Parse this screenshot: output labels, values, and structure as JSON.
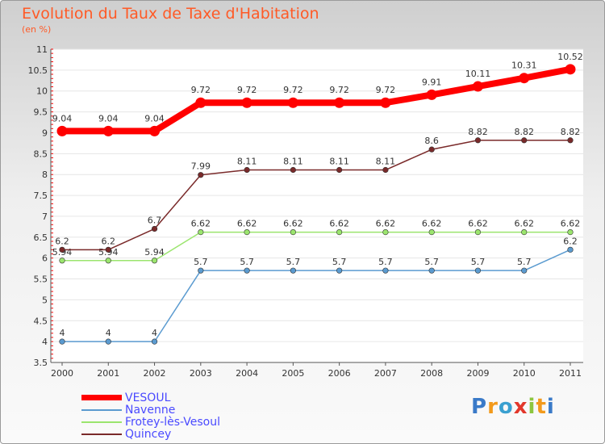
{
  "title": "Evolution du Taux de Taxe d'Habitation",
  "subtitle": "(en %)",
  "logo_text": "Proxiti",
  "chart_data": {
    "type": "line",
    "title": "Evolution du Taux de Taxe d'Habitation",
    "ylabel": "(en %)",
    "ylim": [
      3.5,
      11
    ],
    "yticks": [
      "3.5",
      "4",
      "4.5",
      "5",
      "5.5",
      "6",
      "6.5",
      "7",
      "7.5",
      "8",
      "8.5",
      "9",
      "9.5",
      "10",
      "10.5",
      "11"
    ],
    "categories": [
      "2000",
      "2001",
      "2002",
      "2003",
      "2004",
      "2005",
      "2006",
      "2007",
      "2008",
      "2009",
      "2010",
      "2011"
    ],
    "series": [
      {
        "name": "VESOUL",
        "color": "#ff0000",
        "values": [
          9.04,
          9.04,
          9.04,
          9.72,
          9.72,
          9.72,
          9.72,
          9.72,
          9.91,
          10.11,
          10.31,
          10.52
        ],
        "labels": [
          "9.04",
          "9.04",
          "9.04",
          "9.72",
          "9.72",
          "9.72",
          "9.72",
          "9.72",
          "9.91",
          "10.11",
          "10.31",
          "10.52"
        ]
      },
      {
        "name": "Navenne",
        "color": "#5b9bd0",
        "values": [
          4,
          4,
          4,
          5.7,
          5.7,
          5.7,
          5.7,
          5.7,
          5.7,
          5.7,
          5.7,
          6.2
        ],
        "labels": [
          "4",
          "4",
          "4",
          "5.7",
          "5.7",
          "5.7",
          "5.7",
          "5.7",
          "5.7",
          "5.7",
          "5.7",
          "6.2"
        ]
      },
      {
        "name": "Frotey-lès-Vesoul",
        "color": "#9be56e",
        "values": [
          5.94,
          5.94,
          5.94,
          6.62,
          6.62,
          6.62,
          6.62,
          6.62,
          6.62,
          6.62,
          6.62,
          6.62
        ],
        "labels": [
          "5.94",
          "5.94",
          "5.94",
          "6.62",
          "6.62",
          "6.62",
          "6.62",
          "6.62",
          "6.62",
          "6.62",
          "6.62",
          "6.62"
        ]
      },
      {
        "name": "Quincey",
        "color": "#7a2a2a",
        "values": [
          6.2,
          6.2,
          6.7,
          7.99,
          8.11,
          8.11,
          8.11,
          8.11,
          8.6,
          8.82,
          8.82,
          8.82
        ],
        "labels": [
          "6.2",
          "6.2",
          "6.7",
          "7.99",
          "8.11",
          "8.11",
          "8.11",
          "8.11",
          "8.6",
          "8.82",
          "8.82",
          "8.82"
        ]
      }
    ]
  }
}
